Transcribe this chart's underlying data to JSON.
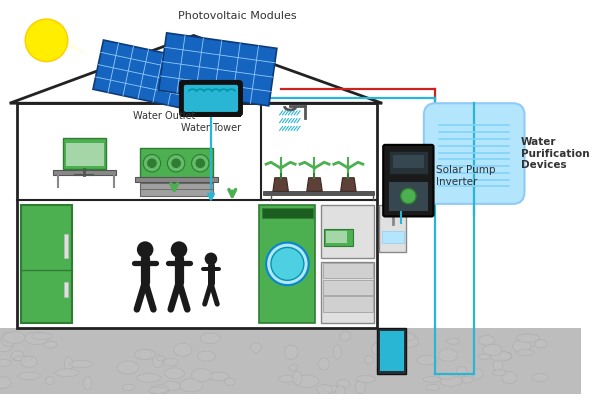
{
  "background_color": "#ffffff",
  "house_color": "#222222",
  "red_wire": "#cc2222",
  "blue_wire": "#29b6d4",
  "green_color": "#4caf50",
  "dark_green": "#2e7d32",
  "sun_color": "#ffee00",
  "beam_color": "#fffde0",
  "panel_dark": "#1565c0",
  "panel_light": "#1e88e5",
  "panel_grid": "#90caf9",
  "water_blue": "#29b6d4",
  "water_fill": "#4dd0e1",
  "tank_dark": "#333333",
  "inverter_dark": "#1a1a1a",
  "inverter_mid": "#263238",
  "ground_color": "#bdbdbd",
  "ground_line": "#9e9e9e",
  "wp_fill": "#b3e5fc",
  "wp_stripe": "#81d4fa",
  "gray_furniture": "#9e9e9e",
  "light_gray": "#e0e0e0",
  "labels": {
    "photovoltaic": "Photovoltaic Modules",
    "water_tower": "Water Tower",
    "water_outlet": "Water Outlet",
    "solar_pump": "Solar Pump\nInverter",
    "water_purification": "Water\nPurification\nDevices"
  },
  "label_color": "#333333",
  "lw_house": 2.0,
  "lw_wire": 1.6
}
